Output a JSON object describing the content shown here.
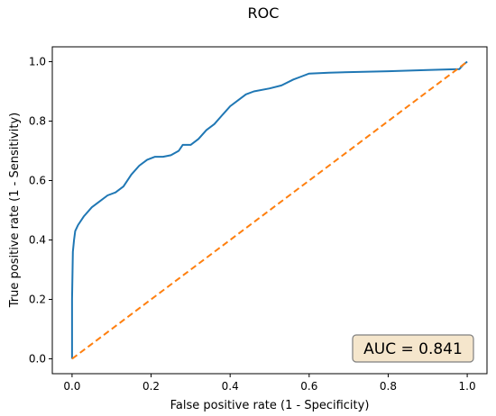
{
  "chart_data": {
    "type": "line",
    "title": "ROC",
    "xlabel": "False positive rate (1 - Specificity)",
    "ylabel": "True positive rate (1 - Sensitivity)",
    "xlim": [
      -0.05,
      1.05
    ],
    "ylim": [
      -0.05,
      1.05
    ],
    "xticks": [
      0.0,
      0.2,
      0.4,
      0.6,
      0.8,
      1.0
    ],
    "yticks": [
      0.0,
      0.2,
      0.4,
      0.6,
      0.8,
      1.0
    ],
    "xtick_labels": [
      "0.0",
      "0.2",
      "0.4",
      "0.6",
      "0.8",
      "1.0"
    ],
    "ytick_labels": [
      "0.0",
      "0.2",
      "0.4",
      "0.6",
      "0.8",
      "1.0"
    ],
    "grid": false,
    "series": [
      {
        "style": "solid",
        "color": "#1f77b4",
        "points": [
          [
            0.0,
            0.0
          ],
          [
            0.0,
            0.2
          ],
          [
            0.002,
            0.36
          ],
          [
            0.005,
            0.4
          ],
          [
            0.008,
            0.43
          ],
          [
            0.015,
            0.45
          ],
          [
            0.03,
            0.48
          ],
          [
            0.05,
            0.51
          ],
          [
            0.07,
            0.53
          ],
          [
            0.09,
            0.55
          ],
          [
            0.11,
            0.56
          ],
          [
            0.13,
            0.58
          ],
          [
            0.15,
            0.62
          ],
          [
            0.17,
            0.65
          ],
          [
            0.19,
            0.67
          ],
          [
            0.21,
            0.68
          ],
          [
            0.23,
            0.68
          ],
          [
            0.25,
            0.685
          ],
          [
            0.27,
            0.7
          ],
          [
            0.28,
            0.72
          ],
          [
            0.3,
            0.72
          ],
          [
            0.32,
            0.74
          ],
          [
            0.34,
            0.77
          ],
          [
            0.36,
            0.79
          ],
          [
            0.38,
            0.82
          ],
          [
            0.4,
            0.85
          ],
          [
            0.42,
            0.87
          ],
          [
            0.44,
            0.89
          ],
          [
            0.46,
            0.9
          ],
          [
            0.5,
            0.91
          ],
          [
            0.53,
            0.92
          ],
          [
            0.56,
            0.94
          ],
          [
            0.58,
            0.95
          ],
          [
            0.6,
            0.96
          ],
          [
            0.65,
            0.963
          ],
          [
            0.7,
            0.965
          ],
          [
            0.8,
            0.968
          ],
          [
            0.9,
            0.972
          ],
          [
            0.98,
            0.975
          ],
          [
            0.99,
            0.99
          ],
          [
            1.0,
            1.0
          ]
        ]
      },
      {
        "style": "dashed",
        "color": "#ff7f0e",
        "points": [
          [
            0.0,
            0.0
          ],
          [
            1.0,
            1.0
          ]
        ]
      }
    ],
    "annotation": {
      "text": "AUC = 0.841",
      "placement": "bottom-right",
      "box_fill": "#f5e6cc",
      "box_stroke": "#7f7f7f"
    }
  }
}
